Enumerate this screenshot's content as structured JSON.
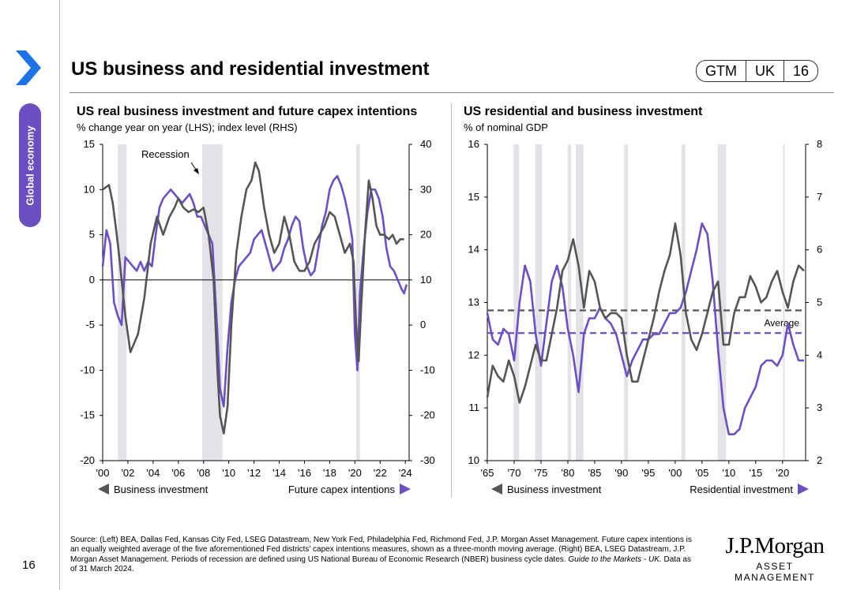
{
  "page_number": "16",
  "side_tab": "Global economy",
  "title": "US business and residential investment",
  "tags": [
    "GTM",
    "UK",
    "16"
  ],
  "colors": {
    "accent": "#6a4fc0",
    "series_dark": "#555555",
    "series_purple": "#6c4ec5",
    "recession": "#e3e3e7"
  },
  "icons": {
    "brand": "chevron-right-icon"
  },
  "chart_data": [
    {
      "type": "line",
      "title": "US real business investment and future capex intentions",
      "subtitle": "% change year on year (LHS); index level (RHS)",
      "x_range": [
        2000,
        2024.3
      ],
      "x_ticks": [
        "'00",
        "'02",
        "'04",
        "'06",
        "'08",
        "'10",
        "'12",
        "'14",
        "'16",
        "'18",
        "'20",
        "'22",
        "'24"
      ],
      "y_left": {
        "range": [
          -20,
          15
        ],
        "ticks": [
          "15",
          "10",
          "5",
          "0",
          "-5",
          "-10",
          "-15",
          "-20"
        ]
      },
      "y_right": {
        "range": [
          -30,
          40
        ],
        "ticks": [
          "40",
          "30",
          "20",
          "10",
          "0",
          "-10",
          "-20",
          "-30"
        ]
      },
      "recessions": [
        [
          2001.2,
          2001.9
        ],
        [
          2007.9,
          2009.5
        ],
        [
          2020.1,
          2020.4
        ]
      ],
      "annotation": "Recession",
      "legend": {
        "left": "Business investment",
        "right": "Future capex intentions"
      },
      "series": [
        {
          "name": "Business investment",
          "axis": "left",
          "color": "#555555",
          "x": [
            2000,
            2000.5,
            2000.8,
            2001.2,
            2001.5,
            2001.8,
            2002.2,
            2002.8,
            2003.3,
            2003.8,
            2004.3,
            2004.8,
            2005.3,
            2005.7,
            2006,
            2006.4,
            2006.8,
            2007.2,
            2007.6,
            2008,
            2008.4,
            2008.8,
            2009.1,
            2009.3,
            2009.6,
            2009.9,
            2010.2,
            2010.6,
            2011,
            2011.4,
            2011.8,
            2012.1,
            2012.4,
            2012.8,
            2013.2,
            2013.6,
            2014,
            2014.4,
            2014.8,
            2015.2,
            2015.6,
            2016,
            2016.4,
            2016.8,
            2017.2,
            2017.6,
            2018,
            2018.4,
            2018.8,
            2019.2,
            2019.6,
            2019.9,
            2020.1,
            2020.3,
            2020.5,
            2020.8,
            2021.1,
            2021.4,
            2021.7,
            2022,
            2022.3,
            2022.7,
            2023,
            2023.3,
            2023.6,
            2023.9
          ],
          "y": [
            10,
            10.5,
            8.5,
            4,
            0,
            -4,
            -8,
            -6,
            -2,
            4,
            7,
            5,
            7,
            8,
            9,
            8,
            7.5,
            7.8,
            7.5,
            8,
            5,
            0,
            -10,
            -15,
            -17,
            -14,
            -5,
            3,
            7,
            10,
            11,
            13,
            12,
            8,
            5,
            3,
            4,
            7,
            5,
            2,
            1,
            1,
            2,
            4,
            5,
            6,
            7.5,
            7,
            5,
            3,
            4,
            2,
            -5,
            -9,
            -3,
            5,
            11,
            9,
            6,
            5,
            5,
            4.5,
            5,
            4,
            4.5,
            4.5
          ]
        },
        {
          "name": "Future capex intentions",
          "axis": "right",
          "color": "#6c4ec5",
          "x": [
            2000,
            2000.3,
            2000.6,
            2000.9,
            2001.2,
            2001.5,
            2001.8,
            2002.1,
            2002.4,
            2002.7,
            2003,
            2003.3,
            2003.6,
            2003.9,
            2004.2,
            2004.5,
            2004.8,
            2005.1,
            2005.4,
            2005.7,
            2006,
            2006.3,
            2006.6,
            2006.9,
            2007.2,
            2007.5,
            2007.8,
            2008.1,
            2008.4,
            2008.7,
            2008.9,
            2009.1,
            2009.3,
            2009.6,
            2009.9,
            2010.2,
            2010.5,
            2010.8,
            2011.1,
            2011.4,
            2011.7,
            2012,
            2012.3,
            2012.6,
            2012.9,
            2013.2,
            2013.5,
            2013.8,
            2014.1,
            2014.4,
            2014.7,
            2015,
            2015.3,
            2015.6,
            2015.9,
            2016.2,
            2016.5,
            2016.8,
            2017.1,
            2017.4,
            2017.7,
            2018,
            2018.3,
            2018.6,
            2018.9,
            2019.2,
            2019.5,
            2019.8,
            2020,
            2020.2,
            2020.4,
            2020.7,
            2021,
            2021.3,
            2021.6,
            2021.9,
            2022.2,
            2022.5,
            2022.8,
            2023.1,
            2023.4,
            2023.7,
            2023.9,
            2024.1
          ],
          "y": [
            13,
            21,
            18,
            5,
            2,
            0,
            15,
            14,
            13,
            12,
            14,
            12,
            14,
            13,
            20,
            26,
            28,
            29,
            30,
            29,
            28,
            27,
            28,
            29,
            27,
            24,
            24,
            22,
            20,
            18,
            8,
            -2,
            -14,
            -18,
            -5,
            5,
            10,
            13,
            14,
            15,
            16,
            19,
            20,
            21,
            18,
            15,
            12,
            13,
            14,
            17,
            19,
            22,
            24,
            23,
            17,
            13,
            11,
            12,
            17,
            22,
            25,
            30,
            32,
            33,
            31,
            28,
            24,
            19,
            -2,
            -10,
            7,
            17,
            25,
            30,
            30,
            28,
            24,
            17,
            13,
            12,
            10,
            8,
            7,
            9
          ]
        }
      ]
    },
    {
      "type": "line",
      "title": "US residential and business investment",
      "subtitle": "% of nominal GDP",
      "x_range": [
        1965,
        2024.3
      ],
      "x_ticks": [
        "'65",
        "'70",
        "'75",
        "'80",
        "'85",
        "'90",
        "'95",
        "'00",
        "'05",
        "'10",
        "'15",
        "'20"
      ],
      "y_left": {
        "range": [
          10,
          16
        ],
        "ticks": [
          "16",
          "15",
          "14",
          "13",
          "12",
          "11",
          "10"
        ]
      },
      "y_right": {
        "range": [
          2,
          8
        ],
        "ticks": [
          "8",
          "7",
          "6",
          "5",
          "4",
          "3",
          "2"
        ]
      },
      "recessions": [
        [
          1969.9,
          1970.9
        ],
        [
          1973.9,
          1975.2
        ],
        [
          1980,
          1980.6
        ],
        [
          1981.5,
          1982.9
        ],
        [
          1990.5,
          1991.2
        ],
        [
          2001.2,
          2001.9
        ],
        [
          2007.9,
          2009.5
        ],
        [
          2020.1,
          2020.4
        ]
      ],
      "averages": {
        "label": "Average",
        "business_avg": 12.85,
        "residential_avg": 4.42
      },
      "legend": {
        "left": "Business investment",
        "right": "Residential investment"
      },
      "series": [
        {
          "name": "Business investment",
          "axis": "left",
          "color": "#555555",
          "x": [
            1965,
            1966,
            1967,
            1968,
            1969,
            1970,
            1971,
            1972,
            1973,
            1974,
            1975,
            1976,
            1977,
            1978,
            1979,
            1980,
            1981,
            1982,
            1983,
            1984,
            1985,
            1986,
            1987,
            1988,
            1989,
            1990,
            1991,
            1992,
            1993,
            1994,
            1995,
            1996,
            1997,
            1998,
            1999,
            2000,
            2001,
            2002,
            2003,
            2004,
            2005,
            2006,
            2007,
            2008,
            2009,
            2010,
            2011,
            2012,
            2013,
            2014,
            2015,
            2016,
            2017,
            2018,
            2019,
            2020,
            2021,
            2022,
            2023,
            2024
          ],
          "y": [
            11.2,
            11.8,
            11.6,
            11.5,
            11.9,
            11.6,
            11.1,
            11.4,
            11.8,
            12.2,
            11.9,
            11.9,
            12.4,
            12.9,
            13.6,
            13.8,
            14.2,
            13.7,
            12.9,
            13.6,
            13.4,
            12.9,
            12.7,
            12.8,
            12.8,
            12.7,
            12.0,
            11.5,
            11.5,
            11.9,
            12.3,
            12.7,
            13.2,
            13.6,
            13.9,
            14.5,
            13.9,
            12.8,
            12.3,
            12.1,
            12.4,
            12.8,
            13.2,
            13.4,
            12.2,
            12.2,
            12.8,
            13.1,
            13.1,
            13.5,
            13.3,
            13.0,
            13.1,
            13.4,
            13.6,
            13.2,
            12.9,
            13.4,
            13.7,
            13.6
          ]
        },
        {
          "name": "Residential investment",
          "axis": "right",
          "color": "#6c4ec5",
          "x": [
            1965,
            1966,
            1967,
            1968,
            1969,
            1970,
            1971,
            1972,
            1973,
            1974,
            1975,
            1976,
            1977,
            1978,
            1979,
            1980,
            1981,
            1982,
            1983,
            1984,
            1985,
            1986,
            1987,
            1988,
            1989,
            1990,
            1991,
            1992,
            1993,
            1994,
            1995,
            1996,
            1997,
            1998,
            1999,
            2000,
            2001,
            2002,
            2003,
            2004,
            2005,
            2006,
            2007,
            2008,
            2009,
            2010,
            2011,
            2012,
            2013,
            2014,
            2015,
            2016,
            2017,
            2018,
            2019,
            2020,
            2021,
            2022,
            2023,
            2024
          ],
          "y": [
            4.8,
            4.3,
            4.2,
            4.5,
            4.4,
            3.9,
            5.0,
            5.7,
            5.4,
            4.4,
            3.8,
            4.6,
            5.4,
            5.7,
            5.3,
            4.5,
            4.0,
            3.3,
            4.4,
            4.7,
            4.7,
            4.9,
            4.7,
            4.6,
            4.4,
            4.0,
            3.6,
            3.9,
            4.1,
            4.3,
            4.3,
            4.4,
            4.4,
            4.6,
            4.8,
            4.8,
            4.9,
            5.2,
            5.6,
            6.0,
            6.5,
            6.3,
            5.4,
            4.1,
            3.0,
            2.5,
            2.5,
            2.6,
            3.0,
            3.2,
            3.4,
            3.8,
            3.9,
            3.9,
            3.8,
            4.0,
            4.6,
            4.2,
            3.9,
            3.9
          ]
        }
      ]
    }
  ],
  "source_html": "Source: (Left) BEA, Dallas Fed, Kansas City Fed, LSEG Datastream, New York Fed, Philadelphia Fed, Richmond Fed, J.P. Morgan Asset Management. Future capex intentions is an equally weighted average of the five aforementioned Fed districts’ capex intentions measures, shown as a three-month moving average. (Right) BEA, LSEG Datastream, J.P. Morgan Asset Management. Periods of recession are defined using US National Bureau of Economic Research (NBER) business cycle dates.",
  "source_italic": "Guide to the Markets - UK.",
  "source_tail": " Data as of 31 March 2024.",
  "logo": {
    "main": "J.P.Morgan",
    "sub": "ASSET MANAGEMENT"
  }
}
